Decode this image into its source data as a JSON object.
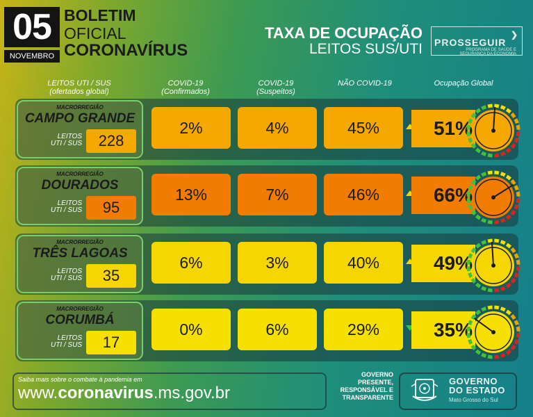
{
  "header": {
    "day": "05",
    "month": "NOVEMBRO",
    "title_line1": "BOLETIM",
    "title_line2": "OFICIAL",
    "title_line3": "CORONAVÍRUS",
    "taxa": "TAXA DE OCUPAÇÃO",
    "leitos": "LEITOS SUS/UTI",
    "prosseguir": "PROSSEGUIR",
    "prosseguir_sub": "PROGRAMA DE SAÚDE E SEGURANÇA DA ECONOMIA"
  },
  "columns": {
    "leitos_line1": "LEITOS UTI / SUS",
    "leitos_line2": "(ofertados global)",
    "covid_conf_line1": "COVID-19",
    "covid_conf_line2": "(Confirmados)",
    "covid_susp_line1": "COVID-19",
    "covid_susp_line2": "(Suspeitos)",
    "nao_covid": "NÃO COVID-19",
    "global": "Ocupação Global"
  },
  "macro_label": "MACRORREGIÃO",
  "leitos_label_line1": "LEITOS",
  "leitos_label_line2": "UTI / SUS",
  "rows": [
    {
      "region": "CAMPO GRANDE",
      "leitos": "228",
      "covid_confirmados": "2%",
      "covid_suspeitos": "4%",
      "nao_covid": "45%",
      "global": "51%",
      "global_value": 51,
      "trend": "up",
      "cell_color": "#f5a800",
      "count_color": "#f5a800"
    },
    {
      "region": "DOURADOS",
      "leitos": "95",
      "covid_confirmados": "13%",
      "covid_suspeitos": "7%",
      "nao_covid": "46%",
      "global": "66%",
      "global_value": 66,
      "trend": "up",
      "cell_color": "#f27c00",
      "count_color": "#f27c00"
    },
    {
      "region": "TRÊS LAGOAS",
      "leitos": "35",
      "covid_confirmados": "6%",
      "covid_suspeitos": "3%",
      "nao_covid": "40%",
      "global": "49%",
      "global_value": 49,
      "trend": "up",
      "cell_color": "#f6d600",
      "count_color": "#f6d600"
    },
    {
      "region": "CORUMBÁ",
      "leitos": "17",
      "covid_confirmados": "0%",
      "covid_suspeitos": "6%",
      "nao_covid": "29%",
      "global": "35%",
      "global_value": 35,
      "trend": "down",
      "cell_color": "#f6e000",
      "count_color": "#f6e000"
    }
  ],
  "footer": {
    "saiba": "Saiba mais sobre o combate à pandemia em",
    "url_prefix": "www.",
    "url_bold": "coronavirus",
    "url_suffix": ".ms.gov.br",
    "gov_line1": "GOVERNO",
    "gov_line2": "PRESENTE,",
    "gov_line3": "RESPONSÁVEL E",
    "gov_line4": "TRANSPARENTE",
    "gov_name1": "GOVERNO",
    "gov_name2": "DO ESTADO",
    "gov_state": "Mato Grosso do Sul"
  },
  "colors": {
    "trend_up": "#f6d600",
    "trend_down": "#2ec94a",
    "gauge_red": "#d9261c",
    "gauge_orange": "#f2a100",
    "gauge_yellow": "#f6e000",
    "gauge_green": "#43c03c"
  }
}
